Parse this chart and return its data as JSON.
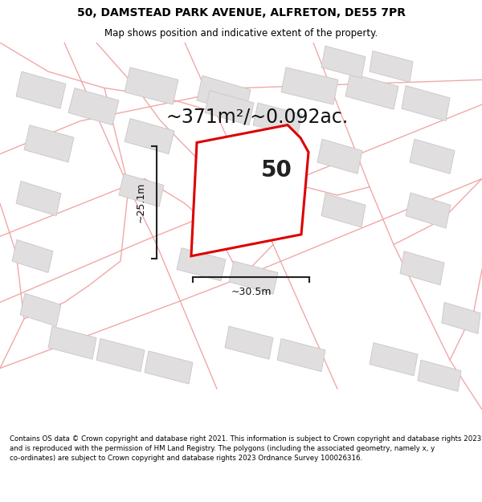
{
  "title": "50, DAMSTEAD PARK AVENUE, ALFRETON, DE55 7PR",
  "subtitle": "Map shows position and indicative extent of the property.",
  "area_text": "~371m²/~0.092ac.",
  "label_50": "50",
  "dim_vertical": "~25.1m",
  "dim_horizontal": "~30.5m",
  "footer": "Contains OS data © Crown copyright and database right 2021. This information is subject to Crown copyright and database rights 2023 and is reproduced with the permission of HM Land Registry. The polygons (including the associated geometry, namely x, y co-ordinates) are subject to Crown copyright and database rights 2023 Ordnance Survey 100026316.",
  "bg_color": "#ffffff",
  "map_bg": "#f5f3f3",
  "plot_color": "#dd0000",
  "plot_fill": "#ffffff",
  "building_fill": "#e0dede",
  "building_edge": "#c8c6c6",
  "road_color": "#f0a8a8",
  "figsize": [
    6.0,
    6.25
  ],
  "dpi": 100,
  "title_fontsize": 10,
  "subtitle_fontsize": 8.5,
  "area_fontsize": 17,
  "label_fontsize": 20,
  "dim_fontsize": 9,
  "footer_fontsize": 6.2
}
